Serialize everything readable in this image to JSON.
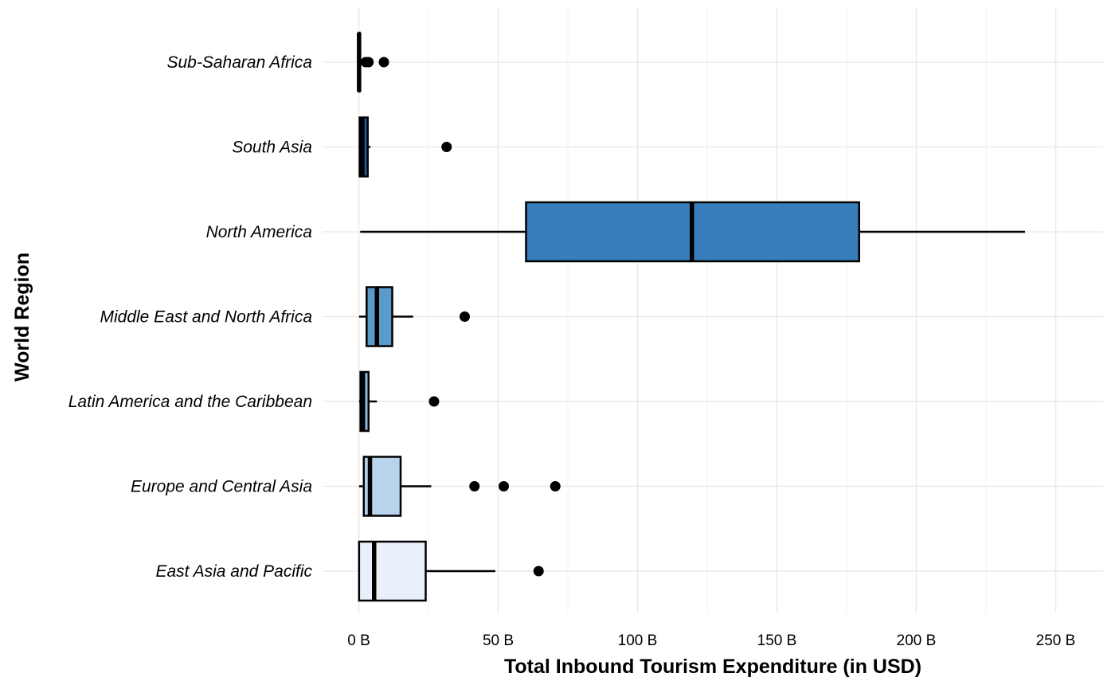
{
  "chart_data": {
    "type": "boxplot",
    "orientation": "horizontal",
    "title": "",
    "xlabel": "Total Inbound Tourism Expenditure (in USD)",
    "ylabel": "World Region",
    "xlim": [
      -13,
      267
    ],
    "xticks": [
      {
        "value": 0,
        "label": "0 B"
      },
      {
        "value": 50,
        "label": "50 B"
      },
      {
        "value": 100,
        "label": "100 B"
      },
      {
        "value": 150,
        "label": "150 B"
      },
      {
        "value": 200,
        "label": "200 B"
      },
      {
        "value": 250,
        "label": "250 B"
      }
    ],
    "grid": true,
    "legend": "none",
    "categories": [
      "East Asia and Pacific",
      "Europe and Central Asia",
      "Latin America and the Caribbean",
      "Middle East and North Africa",
      "North America",
      "South Asia",
      "Sub-Saharan Africa"
    ],
    "boxes": [
      {
        "name": "East Asia and Pacific",
        "min": 0.1,
        "q1": 0.1,
        "median": 5.5,
        "q3": 24,
        "max": 49,
        "outliers": [
          64.5
        ],
        "fill": "#eaf0fb"
      },
      {
        "name": "Europe and Central Asia",
        "min": 0.1,
        "q1": 1.8,
        "median": 4,
        "q3": 15,
        "max": 26,
        "outliers": [
          41.5,
          52,
          70.5
        ],
        "fill": "#bad3ed"
      },
      {
        "name": "Latin America and the Caribbean",
        "min": 0.1,
        "q1": 0.6,
        "median": 1.5,
        "q3": 3.5,
        "max": 6.5,
        "outliers": [
          27
        ],
        "fill": "#8eb9df"
      },
      {
        "name": "Middle East and North Africa",
        "min": 0.1,
        "q1": 2.8,
        "median": 6.5,
        "q3": 12,
        "max": 19.5,
        "outliers": [
          38
        ],
        "fill": "#5b9bcc"
      },
      {
        "name": "North America",
        "min": 0.5,
        "q1": 60,
        "median": 119.5,
        "q3": 179.5,
        "max": 239,
        "outliers": [],
        "fill": "#377ebb"
      },
      {
        "name": "South Asia",
        "min": 0.1,
        "q1": 0.3,
        "median": 1.3,
        "q3": 3.2,
        "max": 4.2,
        "outliers": [
          31.5
        ],
        "fill": "#1b5fa6"
      },
      {
        "name": "Sub-Saharan Africa",
        "min": 0,
        "q1": 0.05,
        "median": 0.1,
        "q3": 0.3,
        "max": 0.5,
        "outliers": [
          2.5,
          3.5,
          9
        ],
        "fill": "#0a3f85"
      }
    ]
  }
}
